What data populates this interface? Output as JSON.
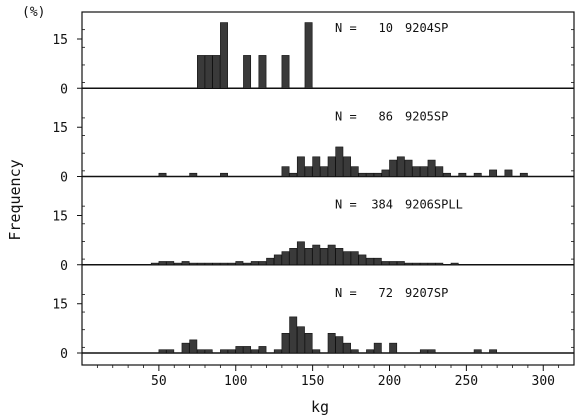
{
  "chart_data": {
    "type": "bar",
    "y_unit_label": "(%)",
    "ylabel": "Frequency",
    "xlabel": "kg",
    "xlim": [
      0,
      320
    ],
    "x_ticks": [
      50,
      100,
      150,
      200,
      250,
      300
    ],
    "y_ticks": [
      0,
      15
    ],
    "bin_width": 5,
    "panels": [
      {
        "n_label": "N =",
        "n_value": "10",
        "sample": "9204SP",
        "ylim": [
          0,
          22
        ],
        "bars": [
          {
            "x": 75,
            "y": 10
          },
          {
            "x": 80,
            "y": 10
          },
          {
            "x": 85,
            "y": 10
          },
          {
            "x": 90,
            "y": 20
          },
          {
            "x": 105,
            "y": 10
          },
          {
            "x": 115,
            "y": 10
          },
          {
            "x": 130,
            "y": 10
          },
          {
            "x": 145,
            "y": 20
          }
        ]
      },
      {
        "n_label": "N =",
        "n_value": "86",
        "sample": "9205SP",
        "ylim": [
          0,
          22
        ],
        "bars": [
          {
            "x": 50,
            "y": 1
          },
          {
            "x": 70,
            "y": 1
          },
          {
            "x": 90,
            "y": 1
          },
          {
            "x": 130,
            "y": 3
          },
          {
            "x": 135,
            "y": 1
          },
          {
            "x": 140,
            "y": 6
          },
          {
            "x": 145,
            "y": 3
          },
          {
            "x": 150,
            "y": 6
          },
          {
            "x": 155,
            "y": 3
          },
          {
            "x": 160,
            "y": 6
          },
          {
            "x": 165,
            "y": 9
          },
          {
            "x": 170,
            "y": 6
          },
          {
            "x": 175,
            "y": 3
          },
          {
            "x": 180,
            "y": 1
          },
          {
            "x": 185,
            "y": 1
          },
          {
            "x": 190,
            "y": 1
          },
          {
            "x": 195,
            "y": 2
          },
          {
            "x": 200,
            "y": 5
          },
          {
            "x": 205,
            "y": 6
          },
          {
            "x": 210,
            "y": 5
          },
          {
            "x": 215,
            "y": 3
          },
          {
            "x": 220,
            "y": 3
          },
          {
            "x": 225,
            "y": 5
          },
          {
            "x": 230,
            "y": 3
          },
          {
            "x": 235,
            "y": 1
          },
          {
            "x": 245,
            "y": 1
          },
          {
            "x": 255,
            "y": 1
          },
          {
            "x": 265,
            "y": 2
          },
          {
            "x": 275,
            "y": 2
          },
          {
            "x": 285,
            "y": 1
          }
        ]
      },
      {
        "n_label": "N =",
        "n_value": "384",
        "sample": "9206SPLL",
        "ylim": [
          0,
          22
        ],
        "bars": [
          {
            "x": 45,
            "y": 0.5
          },
          {
            "x": 50,
            "y": 1
          },
          {
            "x": 55,
            "y": 1
          },
          {
            "x": 60,
            "y": 0.5
          },
          {
            "x": 65,
            "y": 1
          },
          {
            "x": 70,
            "y": 0.5
          },
          {
            "x": 75,
            "y": 0.5
          },
          {
            "x": 80,
            "y": 0.5
          },
          {
            "x": 85,
            "y": 0.5
          },
          {
            "x": 90,
            "y": 0.5
          },
          {
            "x": 95,
            "y": 0.5
          },
          {
            "x": 100,
            "y": 1
          },
          {
            "x": 105,
            "y": 0.5
          },
          {
            "x": 110,
            "y": 1
          },
          {
            "x": 115,
            "y": 1
          },
          {
            "x": 120,
            "y": 2
          },
          {
            "x": 125,
            "y": 3
          },
          {
            "x": 130,
            "y": 4
          },
          {
            "x": 135,
            "y": 5
          },
          {
            "x": 140,
            "y": 7
          },
          {
            "x": 145,
            "y": 5
          },
          {
            "x": 150,
            "y": 6
          },
          {
            "x": 155,
            "y": 5
          },
          {
            "x": 160,
            "y": 6
          },
          {
            "x": 165,
            "y": 5
          },
          {
            "x": 170,
            "y": 4
          },
          {
            "x": 175,
            "y": 4
          },
          {
            "x": 180,
            "y": 3
          },
          {
            "x": 185,
            "y": 2
          },
          {
            "x": 190,
            "y": 2
          },
          {
            "x": 195,
            "y": 1
          },
          {
            "x": 200,
            "y": 1
          },
          {
            "x": 205,
            "y": 1
          },
          {
            "x": 210,
            "y": 0.5
          },
          {
            "x": 215,
            "y": 0.5
          },
          {
            "x": 220,
            "y": 0.5
          },
          {
            "x": 225,
            "y": 0.5
          },
          {
            "x": 230,
            "y": 0.5
          },
          {
            "x": 240,
            "y": 0.5
          }
        ]
      },
      {
        "n_label": "N =",
        "n_value": "72",
        "sample": "9207SP",
        "ylim": [
          0,
          22
        ],
        "bars": [
          {
            "x": 50,
            "y": 1
          },
          {
            "x": 55,
            "y": 1
          },
          {
            "x": 65,
            "y": 3
          },
          {
            "x": 70,
            "y": 4
          },
          {
            "x": 75,
            "y": 1
          },
          {
            "x": 80,
            "y": 1
          },
          {
            "x": 90,
            "y": 1
          },
          {
            "x": 95,
            "y": 1
          },
          {
            "x": 100,
            "y": 2
          },
          {
            "x": 105,
            "y": 2
          },
          {
            "x": 110,
            "y": 1
          },
          {
            "x": 115,
            "y": 2
          },
          {
            "x": 125,
            "y": 1
          },
          {
            "x": 130,
            "y": 6
          },
          {
            "x": 135,
            "y": 11
          },
          {
            "x": 140,
            "y": 8
          },
          {
            "x": 145,
            "y": 6
          },
          {
            "x": 150,
            "y": 1
          },
          {
            "x": 160,
            "y": 6
          },
          {
            "x": 165,
            "y": 5
          },
          {
            "x": 170,
            "y": 3
          },
          {
            "x": 175,
            "y": 1
          },
          {
            "x": 185,
            "y": 1
          },
          {
            "x": 190,
            "y": 3
          },
          {
            "x": 200,
            "y": 3
          },
          {
            "x": 220,
            "y": 1
          },
          {
            "x": 225,
            "y": 1
          },
          {
            "x": 255,
            "y": 1
          },
          {
            "x": 265,
            "y": 1
          }
        ]
      }
    ]
  }
}
